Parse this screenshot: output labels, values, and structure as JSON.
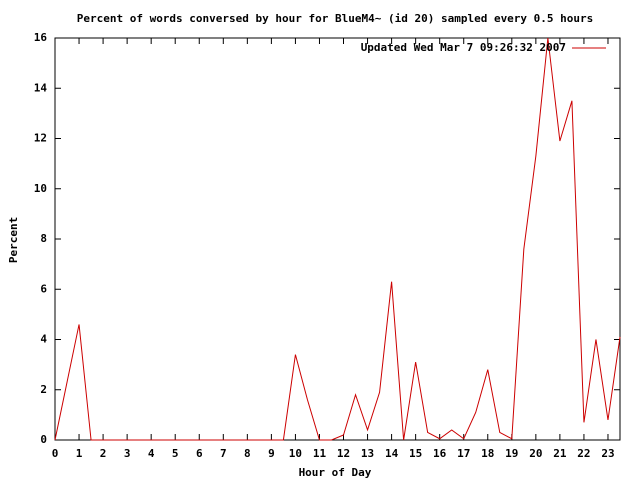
{
  "chart_data": {
    "type": "line",
    "title": "Percent of words conversed by hour for BlueM4~ (id 20) sampled every 0.5 hours",
    "x_label": "Hour of Day",
    "y_label": "Percent",
    "x": [
      0,
      0.5,
      1,
      1.5,
      2,
      2.5,
      3,
      3.5,
      4,
      4.5,
      5,
      5.5,
      6,
      6.5,
      7,
      7.5,
      8,
      8.5,
      9,
      9.5,
      10,
      10.5,
      11,
      11.5,
      12,
      12.5,
      13,
      13.5,
      14,
      14.5,
      15,
      15.5,
      16,
      16.5,
      17,
      17.5,
      18,
      18.5,
      19,
      19.5,
      20,
      20.5,
      21,
      21.5,
      22,
      22.5,
      23,
      23.5
    ],
    "series": [
      {
        "name": "Updated Wed Mar  7 09:26:32 2007",
        "color": "#cc0000",
        "values": [
          0,
          2.3,
          4.6,
          0,
          0,
          0,
          0,
          0,
          0,
          0,
          0,
          0,
          0,
          0,
          0,
          0,
          0,
          0,
          0,
          0,
          3.4,
          1.6,
          0,
          0,
          0.2,
          1.8,
          0.4,
          1.9,
          6.3,
          0,
          3.1,
          0.3,
          0.05,
          0.4,
          0.05,
          1.1,
          2.8,
          0.3,
          0.05,
          7.6,
          11.3,
          16,
          11.9,
          13.5,
          0.7,
          4,
          0.8,
          4.1
        ]
      }
    ],
    "xlim": [
      0,
      23.5
    ],
    "ylim": [
      0,
      16
    ],
    "xticks": [
      0,
      1,
      2,
      3,
      4,
      5,
      6,
      7,
      8,
      9,
      10,
      11,
      12,
      13,
      14,
      15,
      16,
      17,
      18,
      19,
      20,
      21,
      22,
      23
    ],
    "yticks": [
      0,
      2,
      4,
      6,
      8,
      10,
      12,
      14,
      16
    ],
    "legend": "top-right"
  }
}
